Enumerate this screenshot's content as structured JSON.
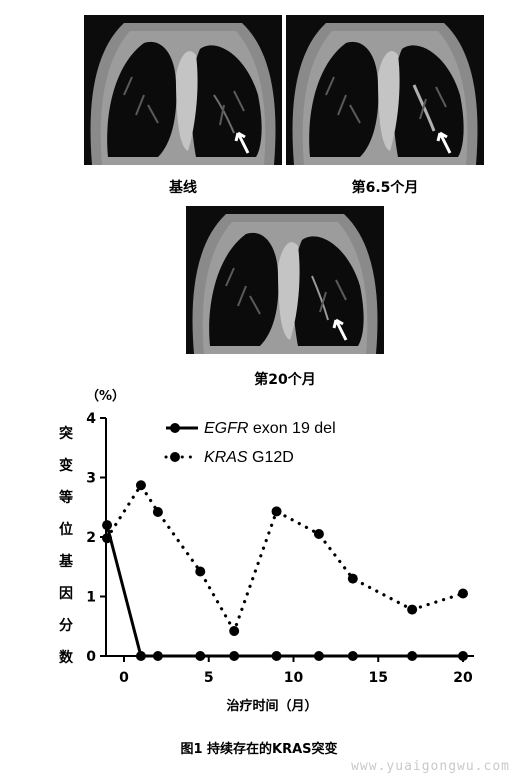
{
  "panels": [
    {
      "caption": "基线"
    },
    {
      "caption": "第6.5个月"
    },
    {
      "caption": "第20个月"
    }
  ],
  "figure_title": "图1 持续存在的KRAS突变",
  "watermark": "www.yuaigongwu.com",
  "chart_data": {
    "type": "line",
    "yunit": "（%）",
    "ylabel": "突变等位基因分数",
    "xlabel": "治疗时间（月）",
    "xlim": [
      -1,
      20
    ],
    "ylim": [
      0,
      4
    ],
    "xticks": [
      0,
      5,
      10,
      15,
      20
    ],
    "yticks": [
      0,
      1,
      2,
      3,
      4
    ],
    "legend_position": "top-right",
    "series": [
      {
        "name_italic": "EGFR",
        "name_rest": " exon 19 del",
        "style": "solid",
        "color": "#000000",
        "points": [
          [
            -1,
            2.2
          ],
          [
            1,
            0
          ],
          [
            2,
            0
          ],
          [
            4.5,
            0
          ],
          [
            6.5,
            0
          ],
          [
            9,
            0
          ],
          [
            11.5,
            0
          ],
          [
            13.5,
            0
          ],
          [
            17,
            0
          ],
          [
            20,
            0
          ]
        ]
      },
      {
        "name_italic": "KRAS",
        "name_rest": " G12D",
        "style": "dotted",
        "color": "#000000",
        "points": [
          [
            -1,
            1.98
          ],
          [
            1,
            2.87
          ],
          [
            2,
            2.42
          ],
          [
            4.5,
            1.42
          ],
          [
            6.5,
            0.42
          ],
          [
            9,
            2.43
          ],
          [
            11.5,
            2.05
          ],
          [
            13.5,
            1.3
          ],
          [
            17,
            0.78
          ],
          [
            20,
            1.05
          ]
        ]
      }
    ]
  }
}
